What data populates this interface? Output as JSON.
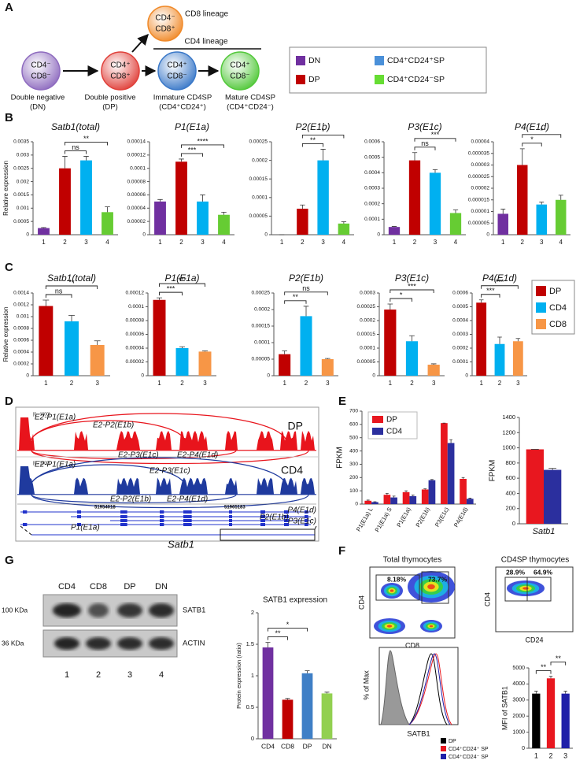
{
  "panel_labels": [
    "A",
    "B",
    "C",
    "D",
    "E",
    "F",
    "G"
  ],
  "lineage": {
    "cells": [
      {
        "top": "CD4⁻",
        "bottom": "CD8⁻",
        "caption": [
          "Double negative",
          "(DN)"
        ],
        "color": "#8e6bbf"
      },
      {
        "top": "CD4⁺",
        "bottom": "CD8⁺",
        "caption": [
          "Double positive",
          "(DP)"
        ],
        "color": "#e0403a"
      },
      {
        "top": "CD4⁺",
        "bottom": "CD8⁻",
        "caption": [
          "Immature CD4SP",
          "(CD4⁺CD24⁺)"
        ],
        "color": "#3a78c8"
      },
      {
        "top": "CD4⁺",
        "bottom": "CD8⁻",
        "caption": [
          "Mature CD4SP",
          "(CD4⁺CD24⁻)"
        ],
        "color": "#52c83a"
      },
      {
        "top": "CD4⁻",
        "bottom": "CD8⁺",
        "color": "#f08a2a"
      }
    ],
    "cd8_lineage": "CD8 lineage",
    "cd4_lineage": "CD4 lineage",
    "legend": [
      {
        "name": "DN",
        "color": "#7030a0"
      },
      {
        "name": "CD4⁺CD24⁺SP",
        "color": "#4a90d9"
      },
      {
        "name": "DP",
        "color": "#c00000"
      },
      {
        "name": "CD4⁺CD24⁻SP",
        "color": "#66dd33"
      }
    ]
  },
  "legend_c": [
    {
      "name": "DP",
      "color": "#c00000"
    },
    {
      "name": "CD4",
      "color": "#00b0f0"
    },
    {
      "name": "CD8",
      "color": "#f79646"
    }
  ],
  "sashimi": {
    "tracks": [
      {
        "range": "[0 - 1000]",
        "sample": "DP",
        "color": "#e8141c",
        "labels": [
          "E2-P1(E1a)",
          "E2-P2(E1b)",
          "E2-P3(E1c)",
          "E2-P4(E1d)"
        ]
      },
      {
        "range": "[0 - 1000]",
        "sample": "CD4",
        "color": "#1f3a9e",
        "labels": [
          "E2-P1(E1a)",
          "E2-P3(E1c)",
          "E2-P2(E1b)",
          "E2-P4(E1d)"
        ]
      }
    ],
    "coordinates": [
      "51954018",
      "51965183"
    ],
    "isoforms": [
      "P4(E1d)",
      "P2(E1b)",
      "P3(E1c)",
      "P1(E1a)"
    ],
    "gene": "Satb1"
  },
  "flow": {
    "plots": [
      {
        "title": "Total thymocytes",
        "gates": [
          "8.18%",
          "73.7%"
        ],
        "xlabel": "CD8",
        "ylabel": "CD4"
      },
      {
        "title": "CD4SP thymocytes",
        "gates": [
          "28.9%",
          "64.9%"
        ],
        "xlabel": "CD24",
        "ylabel": "CD4"
      }
    ],
    "histogram": {
      "xlabel": "SATB1",
      "ylabel": "% of Max"
    }
  },
  "western_blot": {
    "lanes": [
      "CD4",
      "CD8",
      "DP",
      "DN"
    ],
    "lane_numbers": [
      "1",
      "2",
      "3",
      "4"
    ],
    "bands": [
      {
        "name": "SATB1",
        "size": "100 KDa"
      },
      {
        "name": "ACTIN",
        "size": "36 KDa"
      }
    ]
  },
  "chart_data": [
    {
      "type": "bar",
      "title": "Satb1(total)",
      "ylabel": "Relative expression",
      "categories": [
        "1",
        "2",
        "3",
        "4"
      ],
      "values": [
        0.00025,
        0.0025,
        0.0028,
        0.00085
      ],
      "errors": [
        2e-05,
        0.00045,
        0.00015,
        0.0002
      ],
      "colors": [
        "#7030a0",
        "#c00000",
        "#00b0f0",
        "#66cc33"
      ],
      "ylim": [
        0,
        0.0035
      ],
      "yticks": [
        0,
        0.0005,
        0.001,
        0.0015,
        0.002,
        0.0025,
        0.003,
        0.0035
      ],
      "comparisons": [
        {
          "label": "ns",
          "pair": [
            "2",
            "3"
          ]
        },
        {
          "label": "**",
          "pair": [
            "2",
            "4"
          ]
        }
      ]
    },
    {
      "type": "bar",
      "title": "P1(E1a)",
      "categories": [
        "1",
        "2",
        "3",
        "4"
      ],
      "values": [
        5e-05,
        0.00011,
        5e-05,
        3e-05
      ],
      "errors": [
        3e-06,
        4e-06,
        1e-05,
        4e-06
      ],
      "colors": [
        "#7030a0",
        "#c00000",
        "#00b0f0",
        "#66cc33"
      ],
      "ylim": [
        0,
        0.00014
      ],
      "yticks": [
        0,
        2e-05,
        4e-05,
        6e-05,
        8e-05,
        0.0001,
        0.00012,
        0.00014
      ],
      "comparisons": [
        {
          "label": "***",
          "pair": [
            "2",
            "3"
          ]
        },
        {
          "label": "****",
          "pair": [
            "2",
            "4"
          ]
        }
      ]
    },
    {
      "type": "bar",
      "title": "P2(E1b)",
      "categories": [
        "1",
        "2",
        "3",
        "4"
      ],
      "values": [
        0,
        7e-05,
        0.0002,
        3e-05
      ],
      "errors": [
        0,
        1e-05,
        3e-05,
        5e-06
      ],
      "colors": [
        "#7030a0",
        "#c00000",
        "#00b0f0",
        "#66cc33"
      ],
      "ylim": [
        0,
        0.00025
      ],
      "yticks": [
        0,
        5e-05,
        0.0001,
        0.00015,
        0.0002,
        0.00025
      ],
      "comparisons": [
        {
          "label": "**",
          "pair": [
            "2",
            "3"
          ]
        },
        {
          "label": "*",
          "pair": [
            "2",
            "4"
          ]
        }
      ]
    },
    {
      "type": "bar",
      "title": "P3(E1c)",
      "categories": [
        "1",
        "2",
        "3",
        "4"
      ],
      "values": [
        5e-05,
        0.00048,
        0.0004,
        0.00014
      ],
      "errors": [
        3e-06,
        5e-05,
        2e-05,
        2e-05
      ],
      "colors": [
        "#7030a0",
        "#c00000",
        "#00b0f0",
        "#66cc33"
      ],
      "ylim": [
        0,
        0.0006
      ],
      "yticks": [
        0,
        0.0001,
        0.0002,
        0.0003,
        0.0004,
        0.0005,
        0.0006
      ],
      "comparisons": [
        {
          "label": "ns",
          "pair": [
            "2",
            "3"
          ]
        },
        {
          "label": "***",
          "pair": [
            "2",
            "4"
          ]
        }
      ]
    },
    {
      "type": "bar",
      "title": "P4(E1d)",
      "categories": [
        "1",
        "2",
        "3",
        "4"
      ],
      "values": [
        9e-06,
        3e-05,
        1.3e-05,
        1.5e-05
      ],
      "errors": [
        2e-06,
        7e-06,
        1e-06,
        2e-06
      ],
      "colors": [
        "#7030a0",
        "#c00000",
        "#00b0f0",
        "#66cc33"
      ],
      "ylim": [
        0,
        4e-05
      ],
      "yticks": [
        0,
        5e-06,
        1e-05,
        1.5e-05,
        2e-05,
        2.5e-05,
        3e-05,
        3.5e-05,
        4e-05
      ],
      "comparisons": [
        {
          "label": "*",
          "pair": [
            "2",
            "3"
          ]
        },
        {
          "label": "*",
          "pair": [
            "2",
            "4"
          ]
        }
      ]
    },
    {
      "type": "bar",
      "title": "Satb1(total)",
      "ylabel": "Relative expression",
      "categories": [
        "1",
        "2",
        "3"
      ],
      "values": [
        0.00118,
        0.00092,
        0.00052
      ],
      "errors": [
        0.0001,
        0.0001,
        7e-05
      ],
      "colors": [
        "#c00000",
        "#00b0f0",
        "#f79646"
      ],
      "ylim": [
        0,
        0.0014
      ],
      "yticks": [
        0,
        0.0002,
        0.0004,
        0.0006,
        0.0008,
        0.001,
        0.0012,
        0.0014
      ],
      "comparisons": [
        {
          "label": "ns",
          "pair": [
            "1",
            "2"
          ]
        },
        {
          "label": "**",
          "pair": [
            "1",
            "3"
          ]
        }
      ]
    },
    {
      "type": "bar",
      "title": "P1(E1a)",
      "categories": [
        "1",
        "2",
        "3"
      ],
      "values": [
        0.00011,
        4e-05,
        3.5e-05
      ],
      "errors": [
        3e-06,
        2e-06,
        1e-06
      ],
      "colors": [
        "#c00000",
        "#00b0f0",
        "#f79646"
      ],
      "ylim": [
        0,
        0.00012
      ],
      "yticks": [
        0,
        2e-05,
        4e-05,
        6e-05,
        8e-05,
        0.0001,
        0.00012
      ],
      "comparisons": [
        {
          "label": "***",
          "pair": [
            "1",
            "2"
          ]
        },
        {
          "label": "***",
          "pair": [
            "1",
            "3"
          ]
        }
      ]
    },
    {
      "type": "bar",
      "title": "P2(E1b)",
      "categories": [
        "1",
        "2",
        "3"
      ],
      "values": [
        6.5e-05,
        0.00018,
        5e-05
      ],
      "errors": [
        1e-05,
        3e-05,
        2e-06
      ],
      "colors": [
        "#c00000",
        "#00b0f0",
        "#f79646"
      ],
      "ylim": [
        0,
        0.00025
      ],
      "yticks": [
        0,
        5e-05,
        0.0001,
        0.00015,
        0.0002,
        0.00025
      ],
      "comparisons": [
        {
          "label": "**",
          "pair": [
            "1",
            "2"
          ]
        },
        {
          "label": "ns",
          "pair": [
            "1",
            "3"
          ]
        }
      ]
    },
    {
      "type": "bar",
      "title": "P3(E1c)",
      "categories": [
        "1",
        "2",
        "3"
      ],
      "values": [
        0.00024,
        0.000125,
        4e-05
      ],
      "errors": [
        2e-05,
        2e-05,
        3e-06
      ],
      "colors": [
        "#c00000",
        "#00b0f0",
        "#f79646"
      ],
      "ylim": [
        0,
        0.0003
      ],
      "yticks": [
        0,
        5e-05,
        0.0001,
        0.00015,
        0.0002,
        0.00025,
        0.0003
      ],
      "comparisons": [
        {
          "label": "*",
          "pair": [
            "1",
            "2"
          ]
        },
        {
          "label": "***",
          "pair": [
            "1",
            "3"
          ]
        }
      ]
    },
    {
      "type": "bar",
      "title": "P4(E1d)",
      "categories": [
        "1",
        "2",
        "3"
      ],
      "values": [
        0.00053,
        0.00023,
        0.00025
      ],
      "errors": [
        2e-05,
        5e-05,
        2e-05
      ],
      "colors": [
        "#c00000",
        "#00b0f0",
        "#f79646"
      ],
      "ylim": [
        0,
        0.0006
      ],
      "yticks": [
        0,
        0.0001,
        0.0002,
        0.0003,
        0.0004,
        0.0005,
        0.0006
      ],
      "comparisons": [
        {
          "label": "***",
          "pair": [
            "1",
            "2"
          ]
        },
        {
          "label": "***",
          "pair": [
            "1",
            "3"
          ]
        }
      ]
    },
    {
      "type": "bar",
      "ylabel": "FPKM",
      "categories": [
        "P1(E1a) L",
        "P1(E1a) S",
        "P1(E1a)",
        "P2(E1b)",
        "P3(E1c)",
        "P4(E1d)"
      ],
      "series": [
        {
          "name": "DP",
          "color": "#e8171f",
          "values": [
            25,
            70,
            90,
            110,
            610,
            190
          ],
          "errors": [
            5,
            10,
            10,
            5,
            0,
            10
          ]
        },
        {
          "name": "CD4",
          "color": "#2b2f9e",
          "values": [
            15,
            50,
            60,
            180,
            460,
            40
          ],
          "errors": [
            3,
            10,
            8,
            5,
            25,
            5
          ]
        }
      ],
      "ylim": [
        0,
        700
      ],
      "yticks": [
        0,
        100,
        200,
        300,
        400,
        500,
        600,
        700
      ],
      "legend": "upper left"
    },
    {
      "type": "bar",
      "ylabel": "FPKM",
      "categories": [
        "Satb1"
      ],
      "series": [
        {
          "color": "#e8171f",
          "values": [
            980
          ],
          "errors": [
            0
          ]
        },
        {
          "color": "#2b2f9e",
          "values": [
            710
          ],
          "errors": [
            20
          ]
        }
      ],
      "ylim": [
        0,
        1400
      ],
      "yticks": [
        0,
        200,
        400,
        600,
        800,
        1000,
        1200,
        1400
      ]
    },
    {
      "type": "bar",
      "ylabel": "MFI of SATB1",
      "categories": [
        "1",
        "2",
        "3"
      ],
      "values": [
        3400,
        4350,
        3400
      ],
      "errors": [
        150,
        130,
        150
      ],
      "colors": [
        "#000000",
        "#e8171f",
        "#1f1fa8"
      ],
      "legend_labels": [
        "DP",
        "CD4⁺CD24⁺ SP",
        "CD4⁺CD24⁻ SP"
      ],
      "ylim": [
        0,
        5000
      ],
      "yticks": [
        0,
        1000,
        2000,
        3000,
        4000,
        5000
      ],
      "comparisons": [
        {
          "label": "**",
          "pair": [
            "1",
            "2"
          ]
        },
        {
          "label": "**",
          "pair": [
            "2",
            "3"
          ]
        }
      ]
    },
    {
      "type": "bar",
      "title": "SATB1 expression",
      "ylabel": "Protein expression (ratio)",
      "categories": [
        "CD4",
        "CD8",
        "DP",
        "DN"
      ],
      "values": [
        1.45,
        0.62,
        1.04,
        0.72
      ],
      "errors": [
        0.08,
        0.02,
        0.04,
        0.02
      ],
      "colors": [
        "#7030a0",
        "#c00000",
        "#3f7fc6",
        "#92d050"
      ],
      "ylim": [
        0,
        2
      ],
      "yticks": [
        0,
        0.5,
        1,
        1.5,
        2
      ],
      "comparisons": [
        {
          "label": "**",
          "pair": [
            "CD4",
            "CD8"
          ]
        },
        {
          "label": "*",
          "pair": [
            "CD4",
            "DP"
          ]
        }
      ]
    }
  ]
}
